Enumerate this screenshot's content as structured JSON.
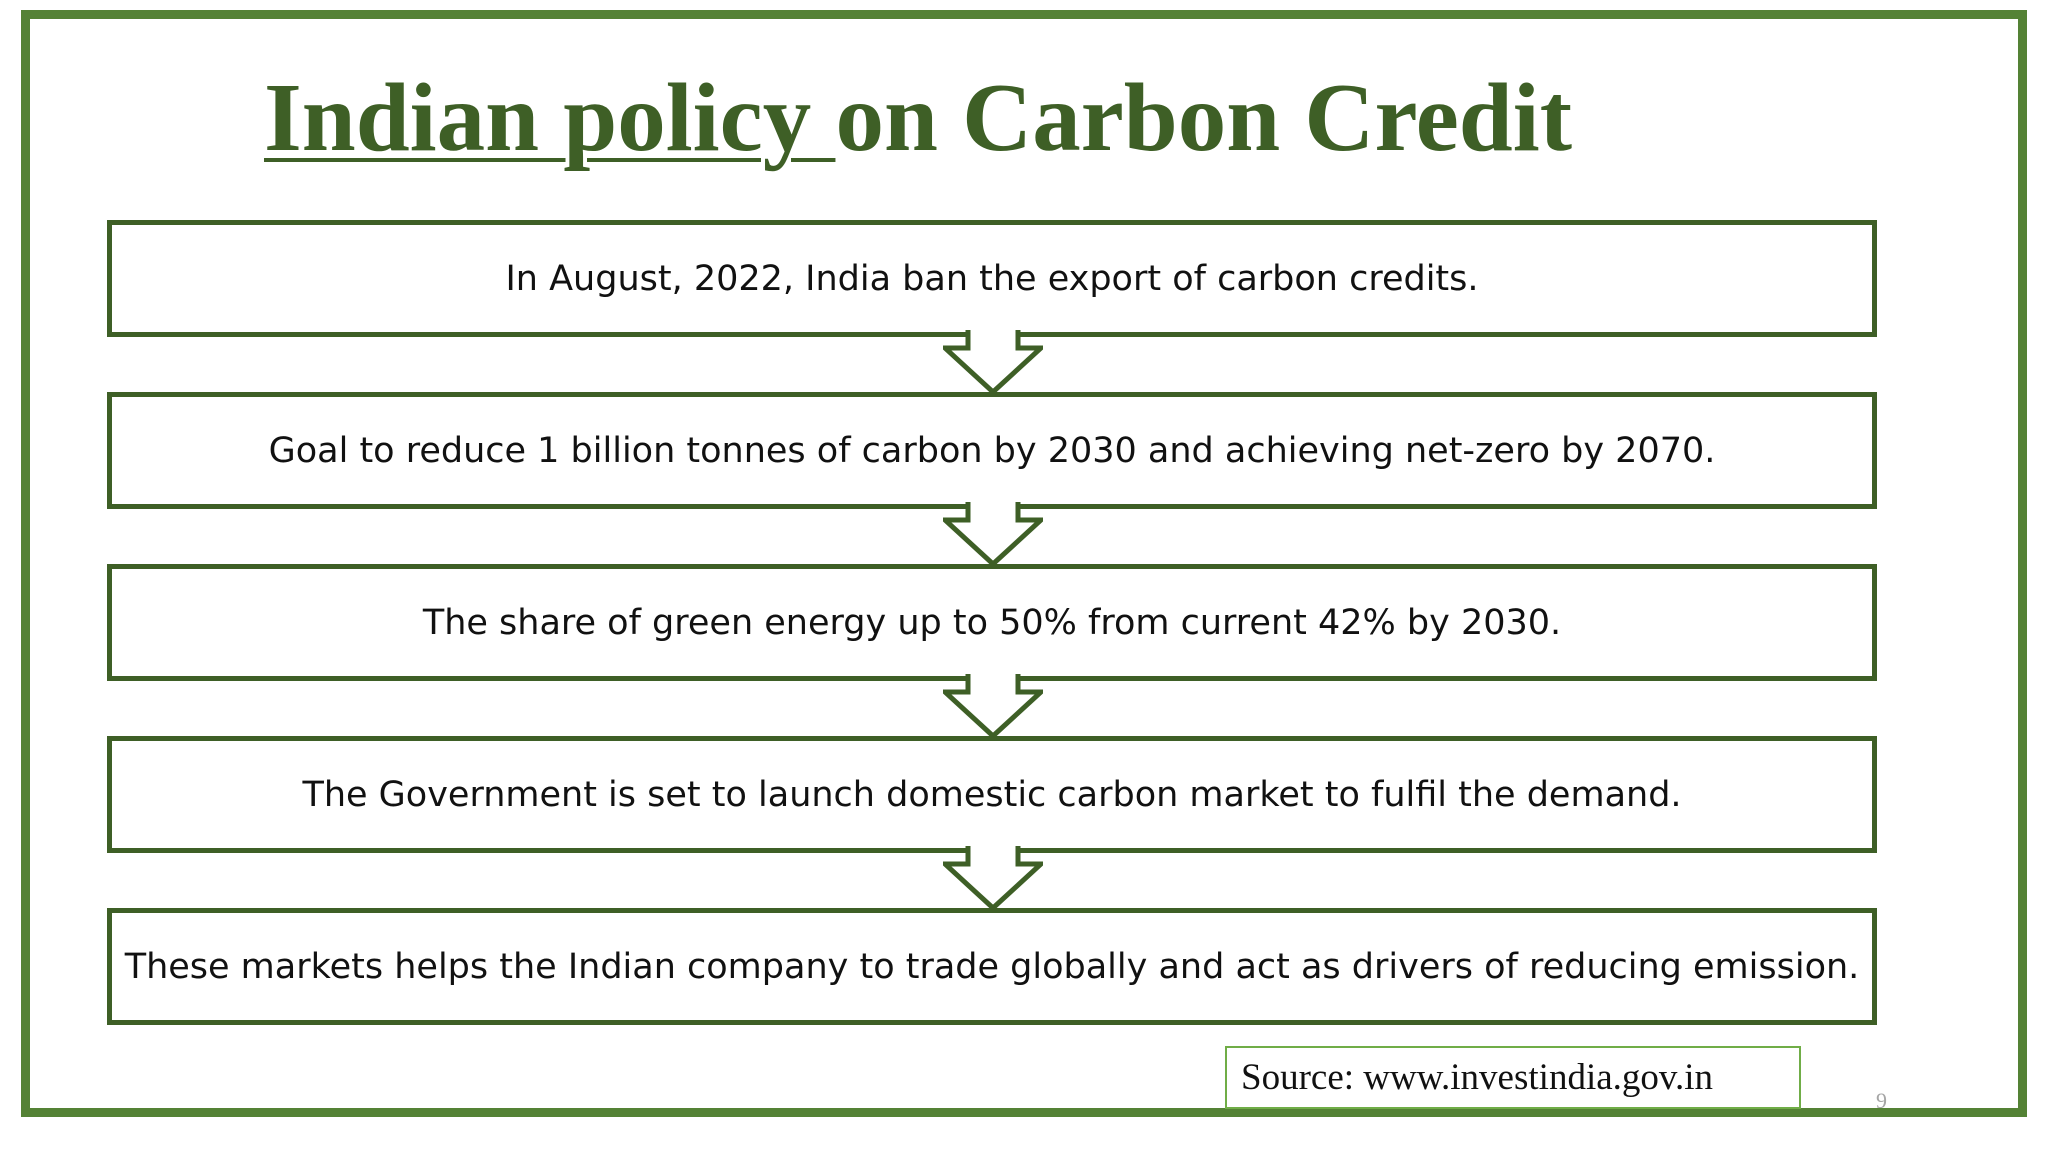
{
  "slide": {
    "title_underlined": "Indian policy ",
    "title_rest": "on Carbon Credit",
    "steps": [
      {
        "text": "In August, 2022, India ban the export of carbon credits."
      },
      {
        "text": "Goal to reduce 1 billion tonnes of carbon by 2030 and achieving net-zero by 2070."
      },
      {
        "text": "The share of green energy up to 50% from current 42% by 2030."
      },
      {
        "text": "The Government is set to launch domestic carbon market to fulfil the demand."
      },
      {
        "text": "These markets helps the Indian company to trade globally and act as drivers of reducing emission."
      }
    ],
    "source": "Source: www.investindia.gov.in",
    "page_number": "9"
  },
  "colors": {
    "frame": "#548235",
    "title": "#3e5f26",
    "box_border": "#3e5f26",
    "source_border": "#70ad47",
    "page_number": "#a6a6a6"
  },
  "icons": {
    "connector": "down-arrow-icon"
  }
}
